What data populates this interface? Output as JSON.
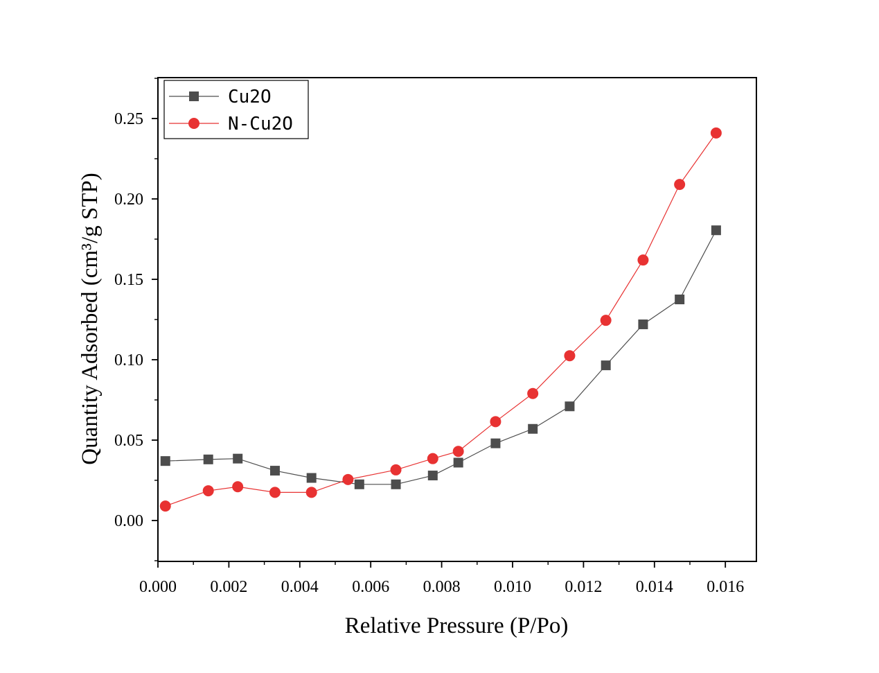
{
  "chart_data": {
    "type": "line",
    "title": "",
    "xlabel": "Relative Pressure (P/Po)",
    "ylabel": "Quantity Adsorbed (cm³/g STP)",
    "xlim": [
      0.0,
      0.017
    ],
    "ylim": [
      -0.025,
      0.275
    ],
    "xticks": [
      0.0,
      0.002,
      0.004,
      0.006,
      0.008,
      0.01,
      0.012,
      0.014,
      0.016
    ],
    "xtick_labels": [
      "0.000",
      "0.002",
      "0.004",
      "0.006",
      "0.008",
      "0.010",
      "0.012",
      "0.014",
      "0.016"
    ],
    "yticks": [
      0.0,
      0.05,
      0.1,
      0.15,
      0.2,
      0.25
    ],
    "ytick_labels": [
      "0.00",
      "0.05",
      "0.10",
      "0.15",
      "0.20",
      "0.25"
    ],
    "grid": false,
    "legend_position": "top-left",
    "series": [
      {
        "name": "Cu2O",
        "color": "#4d4d4d",
        "marker": "square",
        "x": [
          0.00021,
          0.00142,
          0.00225,
          0.0033,
          0.00433,
          0.00568,
          0.00671,
          0.00775,
          0.00847,
          0.00952,
          0.01057,
          0.01161,
          0.01263,
          0.01368,
          0.01471,
          0.01574
        ],
        "y": [
          0.037,
          0.038,
          0.0385,
          0.031,
          0.0265,
          0.0225,
          0.0225,
          0.028,
          0.036,
          0.048,
          0.057,
          0.071,
          0.0965,
          0.122,
          0.1375,
          0.1805
        ]
      },
      {
        "name": "N-Cu2O",
        "color": "#e83232",
        "marker": "circle",
        "x": [
          0.00021,
          0.00142,
          0.00225,
          0.0033,
          0.00433,
          0.00536,
          0.00671,
          0.00775,
          0.00847,
          0.00952,
          0.01057,
          0.01161,
          0.01263,
          0.01368,
          0.01471,
          0.01574
        ],
        "y": [
          0.009,
          0.0185,
          0.021,
          0.0175,
          0.0175,
          0.0255,
          0.0315,
          0.0385,
          0.043,
          0.0615,
          0.079,
          0.1025,
          0.1245,
          0.162,
          0.209,
          0.241
        ]
      }
    ]
  }
}
